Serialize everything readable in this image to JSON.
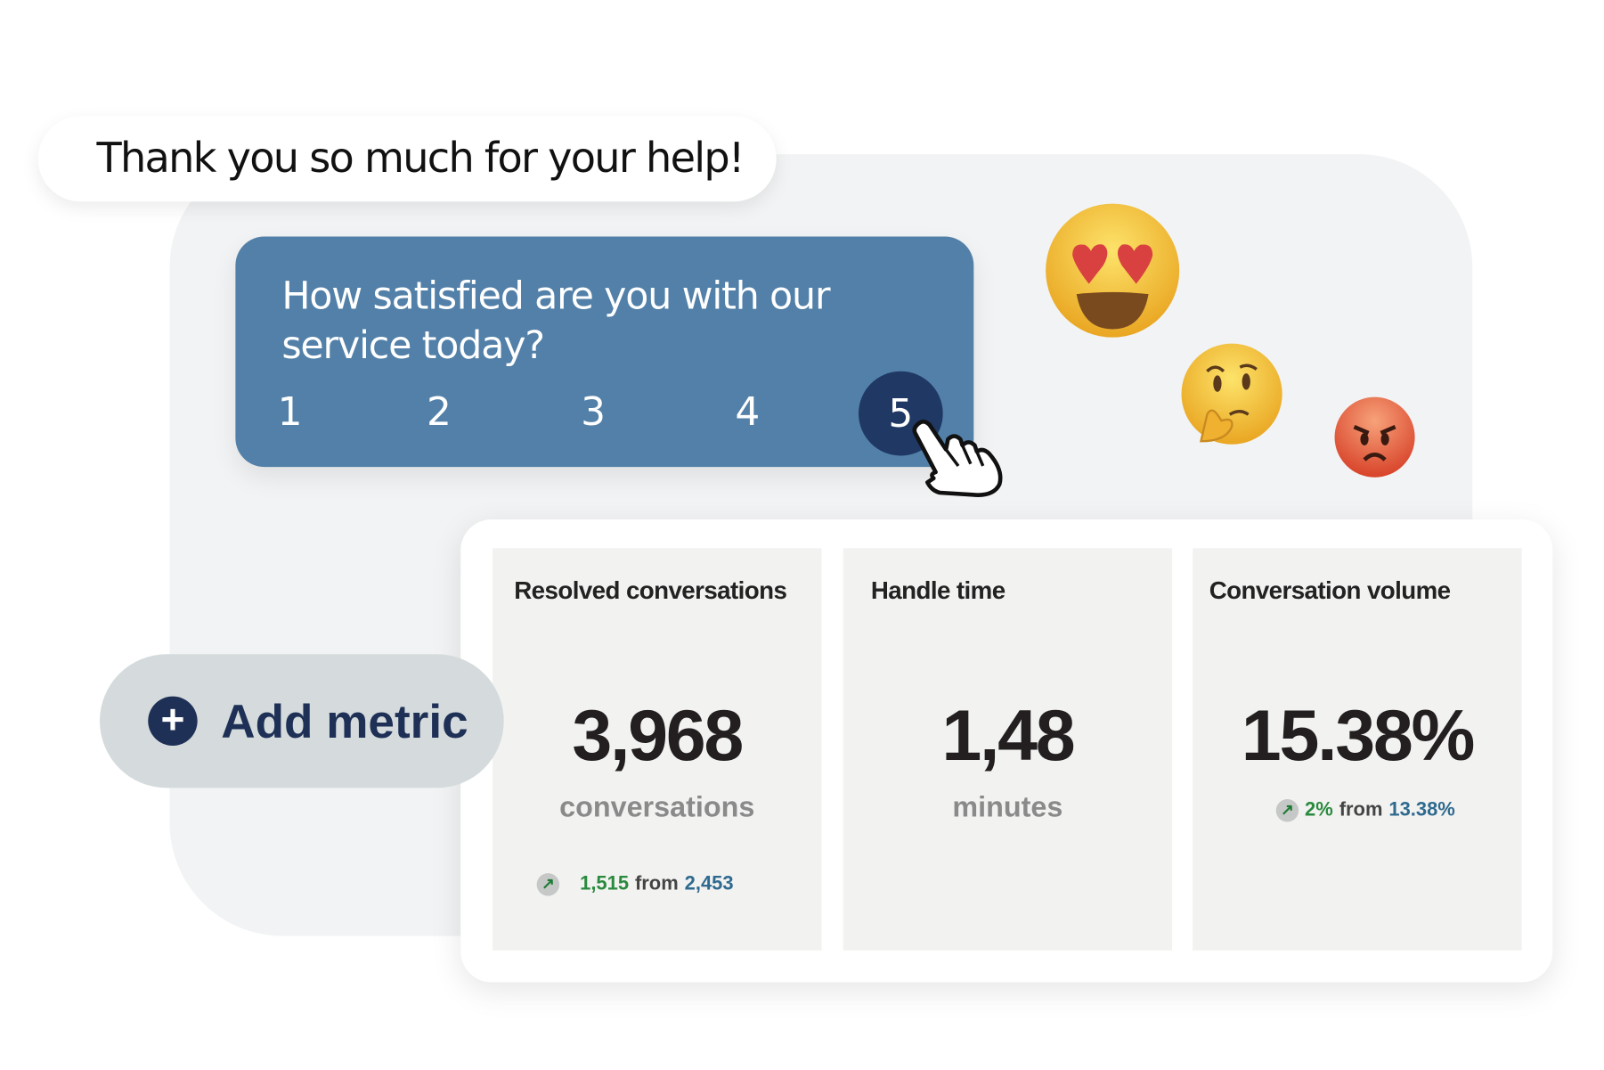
{
  "chat": {
    "customer_message": "Thank you so much for your help!"
  },
  "survey": {
    "question": "How satisfied are you with our service today?",
    "options": [
      "1",
      "2",
      "3",
      "4",
      "5"
    ],
    "selected": "5",
    "accent": "#5280a8",
    "selected_color": "#1f3864"
  },
  "emojis": [
    "smiling-face-with-heart-eyes",
    "thinking-face",
    "angry-face"
  ],
  "add_metric": {
    "label": "Add metric",
    "icon": "plus-circle-icon"
  },
  "metrics": [
    {
      "title": "Resolved conversations",
      "value": "3,968",
      "unit": "conversations",
      "delta": {
        "change": "1,515",
        "from_label": "from",
        "previous": "2,453"
      }
    },
    {
      "title": "Handle time",
      "value": "1,48",
      "unit": "minutes"
    },
    {
      "title": "Conversation volume",
      "value": "15.38%",
      "delta": {
        "change": "2%",
        "from_label": "from",
        "previous": "13.38%"
      }
    }
  ]
}
